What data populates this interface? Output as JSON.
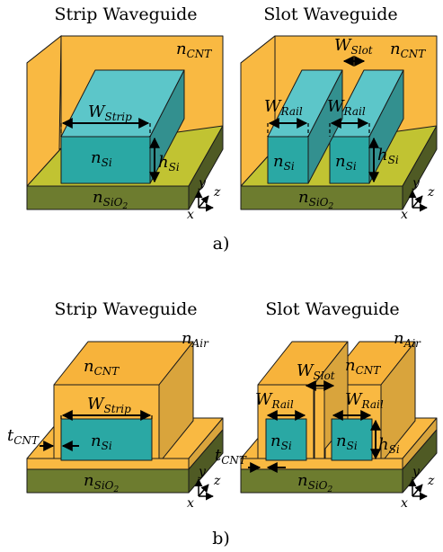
{
  "panel_a": {
    "left_title": "Strip Waveguide",
    "right_title": "Slot Waveguide",
    "caption": "a)",
    "n_cnt": {
      "base": "n",
      "sub": "CNT"
    },
    "n_si": {
      "base": "n",
      "sub": "Si"
    },
    "n_sio2": {
      "base": "n",
      "sub": "SiO",
      "sub2": "2"
    },
    "w_strip": {
      "base": "W",
      "sub": "Strip"
    },
    "w_slot": {
      "base": "W",
      "sub": "Slot"
    },
    "w_rail": {
      "base": "W",
      "sub": "Rail"
    },
    "h_si": {
      "base": "h",
      "sub": "Si"
    },
    "axes": {
      "x": "x",
      "y": "y",
      "z": "z"
    }
  },
  "panel_b": {
    "left_title": "Strip Waveguide",
    "right_title": "Slot Waveguide",
    "caption": "b)",
    "n_air": {
      "base": "n",
      "sub": "Air"
    },
    "n_cnt": {
      "base": "n",
      "sub": "CNT"
    },
    "n_si": {
      "base": "n",
      "sub": "Si"
    },
    "n_sio2": {
      "base": "n",
      "sub": "SiO",
      "sub2": "2"
    },
    "w_strip": {
      "base": "W",
      "sub": "Strip"
    },
    "w_slot": {
      "base": "W",
      "sub": "Slot"
    },
    "w_rail": {
      "base": "W",
      "sub": "Rail"
    },
    "t_cnt": {
      "base": "t",
      "sub": "CNT"
    },
    "h_si": {
      "base": "h",
      "sub": "Si"
    },
    "axes": {
      "x": "x",
      "y": "y",
      "z": "z"
    }
  },
  "colors": {
    "cnt_front": "#f9b942",
    "cnt_side": "#d9a43c",
    "cnt_top": "#f7b33b",
    "si_front": "#2aa8a4",
    "si_top": "#5cc6c9",
    "si_side": "#33908f",
    "sio2_top": "#c1c332",
    "sio2_front": "#6d7c2f",
    "sio2_side": "#4f5a24"
  }
}
